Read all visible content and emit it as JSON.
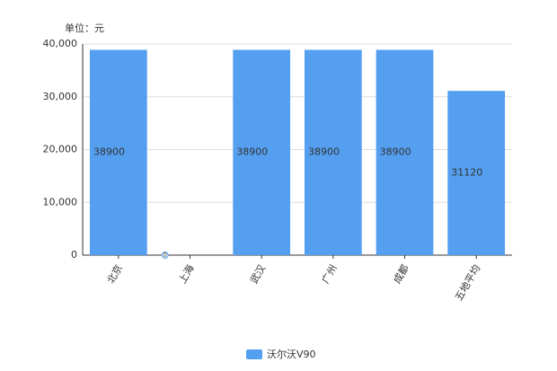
{
  "chart_data": {
    "type": "bar",
    "unit_label": "单位：元",
    "categories": [
      "北京",
      "上海",
      "武汉",
      "广州",
      "成都",
      "五地平均"
    ],
    "series": [
      {
        "name": "沃尔沃V90",
        "color": "#559ff0",
        "values": [
          38900,
          0,
          38900,
          38900,
          38900,
          31120
        ]
      }
    ],
    "ylim": [
      0,
      40000
    ],
    "yticks": [
      0,
      {
        "value": 10000,
        "label": "10,000"
      },
      {
        "value": 20000,
        "label": "20,000"
      },
      {
        "value": 30000,
        "label": "30,000"
      },
      {
        "value": 40000,
        "label": "40,000"
      }
    ],
    "grid": true
  }
}
